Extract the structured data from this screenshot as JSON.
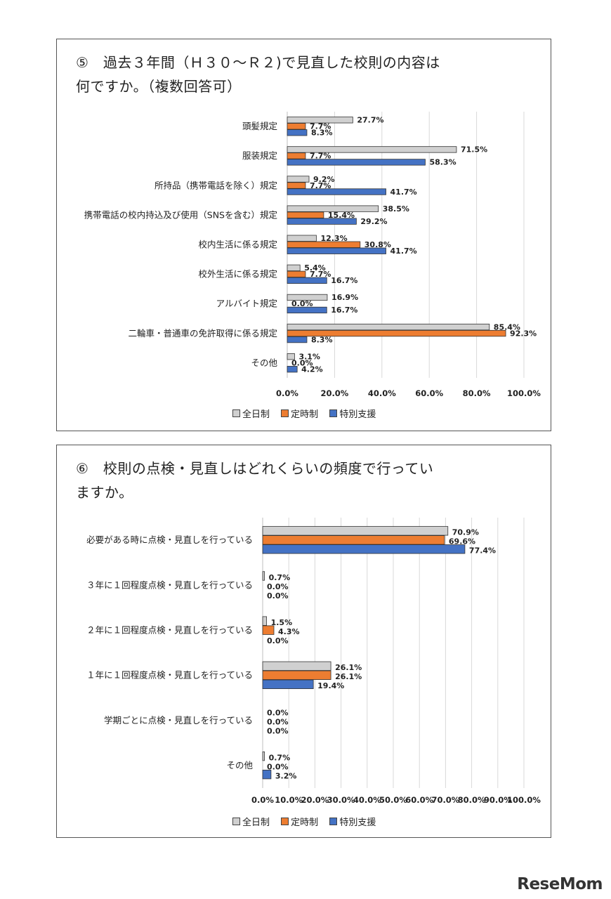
{
  "colors": {
    "全日制": "#d0d0d0",
    "定時制": "#ed7d31",
    "特別支援": "#4472c4",
    "grid": "#d9d9d9"
  },
  "chart_data": [
    {
      "type": "bar",
      "orientation": "horizontal",
      "title_lines": [
        "⑤　過去３年間（Ｈ３０～Ｒ２)で見直した校則の内容は",
        "何ですか。（複数回答可）"
      ],
      "categories": [
        "頭髪規定",
        "服装規定",
        "所持品（携帯電話を除く）規定",
        "携帯電話の校内持込及び使用（SNSを含む）規定",
        "校内生活に係る規定",
        "校外生活に係る規定",
        "アルバイト規定",
        "二輪車・普通車の免許取得に係る規定",
        "その他"
      ],
      "series": [
        {
          "name": "全日制",
          "values": [
            27.7,
            71.5,
            9.2,
            38.5,
            12.3,
            5.4,
            16.9,
            85.4,
            3.1
          ],
          "labels": [
            "27.7%",
            "71.5%",
            "9.2%",
            "38.5%",
            "12.3%",
            "5.4%",
            "16.9%",
            "85.4%",
            "3.1%"
          ]
        },
        {
          "name": "定時制",
          "values": [
            7.7,
            7.7,
            7.7,
            15.4,
            30.8,
            7.7,
            0.0,
            92.3,
            0.0
          ],
          "labels": [
            "7.7%",
            "7.7%",
            "7.7%",
            "15.4%",
            "30.8%",
            "7.7%",
            "0.0%",
            "92.3%",
            "0.0%"
          ]
        },
        {
          "name": "特別支援",
          "values": [
            8.3,
            58.3,
            41.7,
            29.2,
            41.7,
            16.7,
            16.7,
            8.3,
            4.2
          ],
          "labels": [
            "8.3%",
            "58.3%",
            "41.7%",
            "29.2%",
            "41.7%",
            "16.7%",
            "16.7%",
            "8.3%",
            "4.2%"
          ]
        }
      ],
      "xlim": [
        0,
        100
      ],
      "xticks": [
        "0.0%",
        "20.0%",
        "40.0%",
        "60.0%",
        "80.0%",
        "100.0%"
      ],
      "grid": true,
      "legend": "bottom"
    },
    {
      "type": "bar",
      "orientation": "horizontal",
      "title_lines": [
        "⑥　校則の点検・見直しはどれくらいの頻度で行ってい",
        "ますか。"
      ],
      "categories": [
        "必要がある時に点検・見直しを行っている",
        "３年に１回程度点検・見直しを行っている",
        "２年に１回程度点検・見直しを行っている",
        "１年に１回程度点検・見直しを行っている",
        "学期ごとに点検・見直しを行っている",
        "その他"
      ],
      "series": [
        {
          "name": "全日制",
          "values": [
            70.9,
            0.7,
            1.5,
            26.1,
            0.0,
            0.7
          ],
          "labels": [
            "70.9%",
            "0.7%",
            "1.5%",
            "26.1%",
            "0.0%",
            "0.7%"
          ]
        },
        {
          "name": "定時制",
          "values": [
            69.6,
            0.0,
            4.3,
            26.1,
            0.0,
            0.0
          ],
          "labels": [
            "69.6%",
            "0.0%",
            "4.3%",
            "26.1%",
            "0.0%",
            "0.0%"
          ]
        },
        {
          "name": "特別支援",
          "values": [
            77.4,
            0.0,
            0.0,
            19.4,
            0.0,
            3.2
          ],
          "labels": [
            "77.4%",
            "0.0%",
            "0.0%",
            "19.4%",
            "0.0%",
            "3.2%"
          ]
        }
      ],
      "xlim": [
        0,
        100
      ],
      "xticks": [
        "0.0%",
        "10.0%",
        "20.0%",
        "30.0%",
        "40.0%",
        "50.0%",
        "60.0%",
        "70.0%",
        "80.0%",
        "90.0%",
        "100.0%"
      ],
      "grid": true,
      "legend": "bottom"
    }
  ],
  "legend_labels": [
    "全日制",
    "定時制",
    "特別支援"
  ],
  "brand": "ReseMom"
}
